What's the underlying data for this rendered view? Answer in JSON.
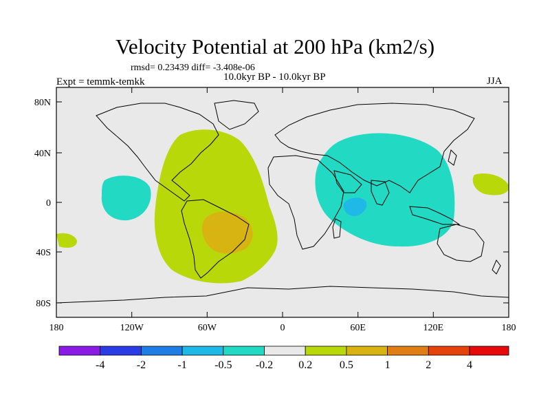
{
  "title": "Velocity Potential at 200 hPa (km2/s)",
  "stats": "rmsd= 0.23439 diff= -3.408e-06",
  "experiment": "Expt = temmk-temkk",
  "period": "10.0kyr BP - 10.0kyr BP",
  "season": "JJA",
  "map": {
    "projection": "cylindrical equidistant",
    "lat_range": [
      -90,
      90
    ],
    "lon_range": [
      -180,
      180
    ],
    "lat_ticks": [
      "80N",
      "40N",
      "0",
      "40S",
      "80S"
    ],
    "lon_ticks": [
      "180",
      "120W",
      "60W",
      "0",
      "60E",
      "120E",
      "180"
    ],
    "background_color": "#e9e9e9",
    "coastline_color": "#000000"
  },
  "colorbar": {
    "colors": [
      "#8a1be6",
      "#2a3ce6",
      "#1f7ee6",
      "#1fb9e8",
      "#22d9c4",
      "#e9e9e9",
      "#b8d80a",
      "#d8b412",
      "#e07d14",
      "#e5420c",
      "#e60a0a"
    ],
    "labels": [
      "-4",
      "-2",
      "-1",
      "-0.5",
      "-0.2",
      "0.2",
      "0.5",
      "1",
      "2",
      "4"
    ]
  },
  "anomaly_colors": {
    "pos_light": "#b8d80a",
    "pos_mid": "#d8b412",
    "neg_light": "#22d9c4",
    "neg_mid": "#1fb9e8"
  }
}
